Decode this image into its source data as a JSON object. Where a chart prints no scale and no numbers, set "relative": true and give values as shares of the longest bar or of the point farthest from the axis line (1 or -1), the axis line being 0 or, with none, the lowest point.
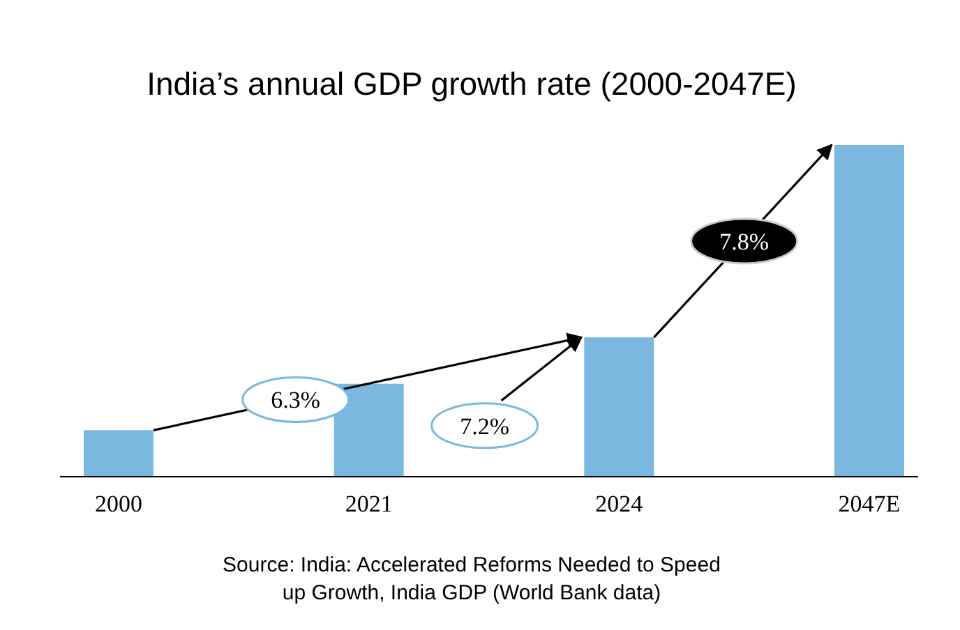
{
  "chart_data": {
    "type": "bar",
    "title": "India’s annual GDP growth rate (2000-2047E)",
    "categories": [
      "2000",
      "2021",
      "2024",
      "2047E"
    ],
    "values": [
      0.14,
      0.28,
      0.42,
      1
    ],
    "color": "#7ab8e0",
    "relative": true,
    "annotations": [
      "6.3%",
      "7.2%",
      "7.8%",
      "Source: India: Accelerated Reforms Needed to Speed up Growth, India GDP (World Bank data)"
    ]
  }
}
